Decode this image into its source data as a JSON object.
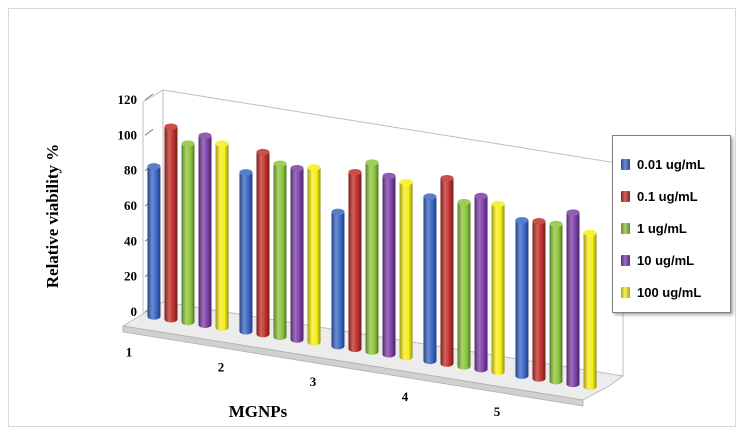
{
  "chart_data": {
    "type": "bar",
    "title": "",
    "xlabel": "MGNPs",
    "ylabel": "Relative viability %",
    "ylim": [
      0,
      120
    ],
    "yticks": [
      0,
      20,
      40,
      60,
      80,
      100,
      120
    ],
    "categories": [
      "1",
      "2",
      "3",
      "4",
      "5"
    ],
    "series": [
      {
        "name": "0.01 ug/mL",
        "color": "#3a66c4",
        "values": [
          85,
          90,
          76,
          93,
          88
        ]
      },
      {
        "name": "0.1 ug/mL",
        "color": "#c0302b",
        "values": [
          109,
          103,
          100,
          105,
          89
        ]
      },
      {
        "name": "1 ug/mL",
        "color": "#8cc43c",
        "values": [
          101,
          98,
          107,
          93,
          89
        ]
      },
      {
        "name": "10 ug/mL",
        "color": "#7d3fa6",
        "values": [
          107,
          97,
          101,
          98,
          97
        ]
      },
      {
        "name": "100 ug/mL",
        "color": "#f5ee1a",
        "values": [
          104,
          99,
          99,
          95,
          87
        ]
      }
    ],
    "legend_position": "right",
    "grid": false
  }
}
